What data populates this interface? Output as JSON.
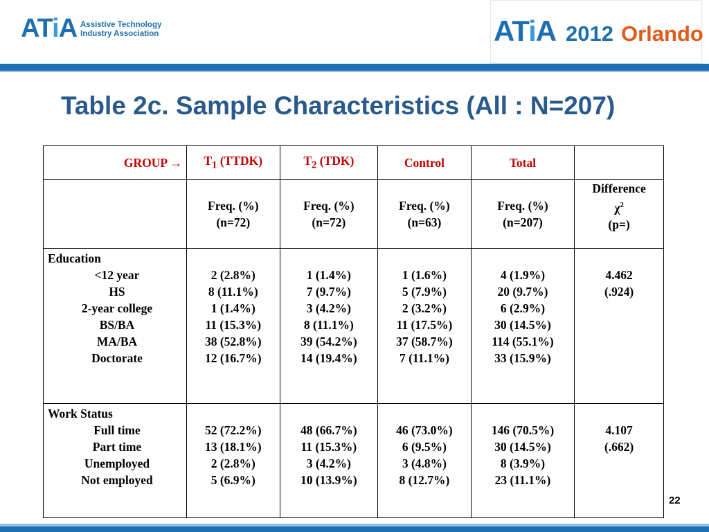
{
  "logo_left": {
    "mark_a": "AT",
    "mark_i": "i",
    "mark_b": "A",
    "line1": "Assistive Technology",
    "line2": "Industry Association"
  },
  "logo_right": {
    "mark_a": "AT",
    "mark_i": "i",
    "mark_b": "A",
    "year": "2012",
    "city": "Orlando"
  },
  "title": "Table 2c. Sample Characteristics (All : N=207)",
  "table": {
    "group_label": "GROUP →",
    "columns": [
      {
        "main": "T",
        "sub": "1",
        "rest": " (TTDK)"
      },
      {
        "main": "T",
        "sub": "2",
        "rest": " (TDK)"
      },
      {
        "main": "Control",
        "sub": "",
        "rest": ""
      },
      {
        "main": "Total",
        "sub": "",
        "rest": ""
      }
    ],
    "subheaders": [
      {
        "l1": "Freq. (%)",
        "l2": "(n=72)"
      },
      {
        "l1": "Freq. (%)",
        "l2": "(n=72)"
      },
      {
        "l1": "Freq. (%)",
        "l2": "(n=63)"
      },
      {
        "l1": "Freq. (%)",
        "l2": "(n=207)"
      }
    ],
    "diff_header": {
      "l1": "Difference",
      "chi": "χ",
      "sup": "2",
      "l3": "(p=)"
    },
    "sections": [
      {
        "label": "Education",
        "items": [
          "<12 year",
          "HS",
          "2-year college",
          "BS/BA",
          "MA/BA",
          "Doctorate"
        ],
        "cols": [
          [
            "2 (2.8%)",
            "8 (11.1%)",
            "1 (1.4%)",
            "11 (15.3%)",
            "38 (52.8%)",
            "12 (16.7%)"
          ],
          [
            "1 (1.4%)",
            "7 (9.7%)",
            "3 (4.2%)",
            "8 (11.1%)",
            "39 (54.2%)",
            "14 (19.4%)"
          ],
          [
            "1 (1.6%)",
            "5 (7.9%)",
            "2 (3.2%)",
            "11 (17.5%)",
            "37 (58.7%)",
            "7 (11.1%)"
          ],
          [
            "4 (1.9%)",
            "20 (9.7%)",
            "6 (2.9%)",
            "30 (14.5%)",
            "114 (55.1%)",
            "33 (15.9%)"
          ]
        ],
        "diff": [
          "4.462",
          "(.924)"
        ]
      },
      {
        "label": "Work Status",
        "items": [
          "Full time",
          "Part time",
          "Unemployed",
          "Not employed"
        ],
        "cols": [
          [
            "52 (72.2%)",
            "13 (18.1%)",
            "2 (2.8%)",
            "5 (6.9%)"
          ],
          [
            "48 (66.7%)",
            "11 (15.3%)",
            "3 (4.2%)",
            "10 (13.9%)"
          ],
          [
            "46 (73.0%)",
            "6 (9.5%)",
            "3 (4.8%)",
            "8 (12.7%)"
          ],
          [
            "146 (70.5%)",
            "30 (14.5%)",
            "8 (3.9%)",
            "23 (11.1%)"
          ]
        ],
        "diff": [
          "4.107",
          "(.662)"
        ]
      }
    ]
  },
  "page_number": "22",
  "colors": {
    "brand_blue": "#1d6fb1",
    "light_blue": "#8cc3ea",
    "title_blue": "#2a5a8c",
    "header_red": "#c00000",
    "orlando_orange": "#e05a1a"
  }
}
